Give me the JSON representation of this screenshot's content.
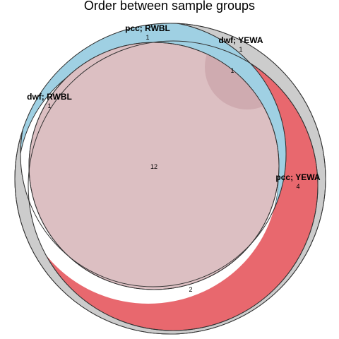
{
  "title": "Order between sample groups",
  "colors": {
    "dwf_YEWA": "#cccccc",
    "pcc_YEWA": "#e8686e",
    "pcc_RWBL": "#9fd0e3",
    "dwf_RWBL": "#ffffff",
    "inner": "#dcbfc2",
    "overlap_top_right": "#cfabb0",
    "stroke": "#333333"
  },
  "sets": [
    {
      "id": "dwf_YEWA",
      "label": "dwf; YEWA"
    },
    {
      "id": "pcc_YEWA",
      "label": "pcc; YEWA"
    },
    {
      "id": "pcc_RWBL",
      "label": "pcc; RWBL"
    },
    {
      "id": "dwf_RWBL",
      "label": "dwf; RWBL"
    }
  ],
  "regions": [
    {
      "id": "pcc_RWBL_only",
      "value": "1"
    },
    {
      "id": "dwf_YEWA_only",
      "value": "1"
    },
    {
      "id": "top_right_overlap",
      "value": "1"
    },
    {
      "id": "dwf_RWBL_only",
      "value": "1"
    },
    {
      "id": "center",
      "value": "12"
    },
    {
      "id": "pcc_YEWA_only",
      "value": "4"
    },
    {
      "id": "lower_white",
      "value": "2"
    }
  ]
}
